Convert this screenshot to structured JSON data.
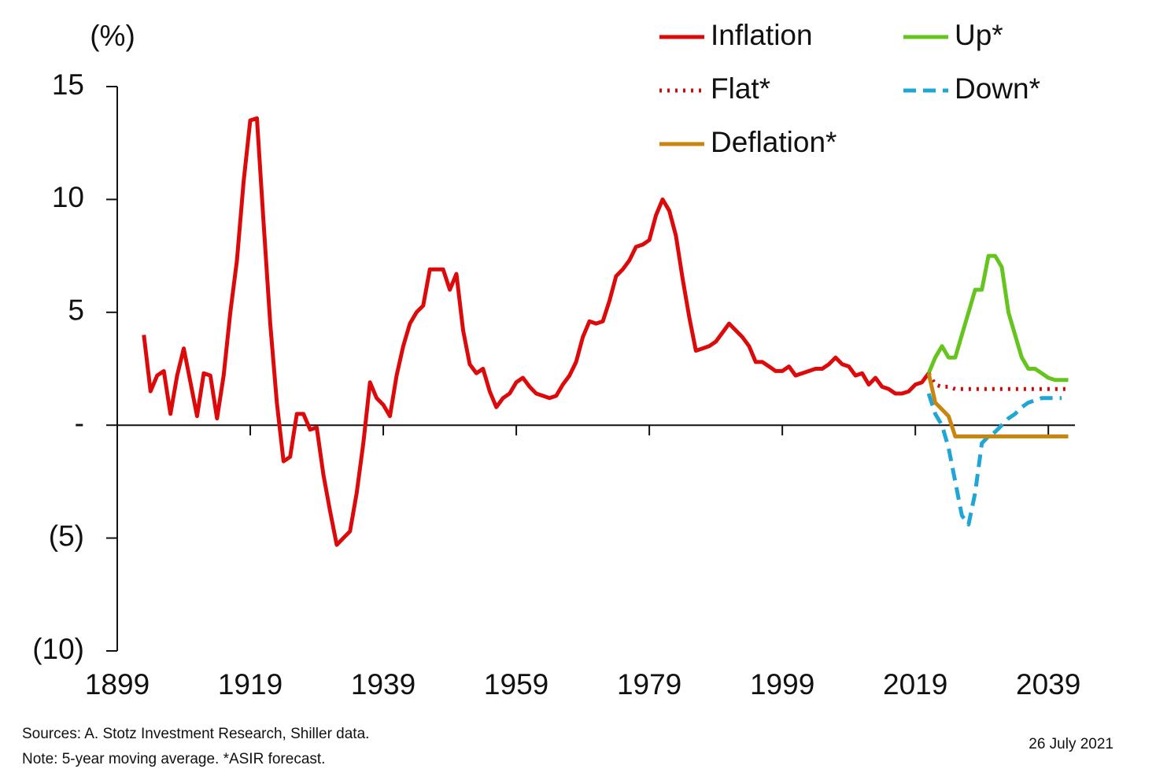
{
  "chart_data": {
    "type": "line",
    "y_label": "(%)",
    "xlim": [
      1899,
      2043
    ],
    "xticks": [
      1899,
      1919,
      1939,
      1959,
      1979,
      1999,
      2019,
      2039
    ],
    "ylim": [
      -10,
      15
    ],
    "yticks": [
      15,
      10,
      5,
      {
        "value": 0,
        "label": "-"
      },
      {
        "value": -5,
        "label": "(5)"
      },
      {
        "value": -10,
        "label": "(10)"
      }
    ],
    "series": [
      {
        "name": "Inflation",
        "color": "#dc0a0a",
        "dash": "solid",
        "x": [
          1903,
          1904,
          1905,
          1906,
          1907,
          1908,
          1909,
          1910,
          1911,
          1912,
          1913,
          1914,
          1915,
          1916,
          1917,
          1918,
          1919,
          1920,
          1921,
          1922,
          1923,
          1924,
          1925,
          1926,
          1927,
          1928,
          1929,
          1930,
          1931,
          1932,
          1933,
          1934,
          1935,
          1936,
          1937,
          1938,
          1939,
          1940,
          1941,
          1942,
          1943,
          1944,
          1945,
          1946,
          1947,
          1948,
          1949,
          1950,
          1951,
          1952,
          1953,
          1954,
          1955,
          1956,
          1957,
          1958,
          1959,
          1960,
          1961,
          1962,
          1963,
          1964,
          1965,
          1966,
          1967,
          1968,
          1969,
          1970,
          1971,
          1972,
          1973,
          1974,
          1975,
          1976,
          1977,
          1978,
          1979,
          1980,
          1981,
          1982,
          1983,
          1984,
          1985,
          1986,
          1987,
          1988,
          1989,
          1990,
          1991,
          1992,
          1993,
          1994,
          1995,
          1996,
          1997,
          1998,
          1999,
          2000,
          2001,
          2002,
          2003,
          2004,
          2005,
          2006,
          2007,
          2008,
          2009,
          2010,
          2011,
          2012,
          2013,
          2014,
          2015,
          2016,
          2017,
          2018,
          2019,
          2020,
          2021
        ],
        "values": [
          4.0,
          1.5,
          2.2,
          2.4,
          0.5,
          2.2,
          3.4,
          1.9,
          0.4,
          2.3,
          2.2,
          0.3,
          2.2,
          5.0,
          7.3,
          10.8,
          13.5,
          13.6,
          9.0,
          4.5,
          1.0,
          -1.6,
          -1.4,
          0.5,
          0.5,
          -0.2,
          -0.1,
          -2.2,
          -3.8,
          -5.3,
          -5.0,
          -4.7,
          -3.0,
          -0.8,
          1.9,
          1.2,
          0.9,
          0.4,
          2.2,
          3.5,
          4.5,
          5.0,
          5.3,
          6.9,
          6.9,
          6.9,
          6.0,
          6.7,
          4.2,
          2.7,
          2.3,
          2.5,
          1.5,
          0.8,
          1.2,
          1.4,
          1.9,
          2.1,
          1.7,
          1.4,
          1.3,
          1.2,
          1.3,
          1.8,
          2.2,
          2.8,
          3.9,
          4.6,
          4.5,
          4.6,
          5.5,
          6.6,
          6.9,
          7.3,
          7.9,
          8.0,
          8.2,
          9.3,
          10.0,
          9.5,
          8.4,
          6.5,
          4.8,
          3.3,
          3.4,
          3.5,
          3.7,
          4.1,
          4.5,
          4.2,
          3.9,
          3.5,
          2.8,
          2.8,
          2.6,
          2.4,
          2.4,
          2.6,
          2.2,
          2.3,
          2.4,
          2.5,
          2.5,
          2.7,
          3.0,
          2.7,
          2.6,
          2.2,
          2.3,
          1.8,
          2.1,
          1.7,
          1.6,
          1.4,
          1.4,
          1.5,
          1.8,
          1.9,
          2.3
        ]
      },
      {
        "name": "Up*",
        "color": "#66c41e",
        "dash": "solid",
        "x": [
          2021,
          2022,
          2023,
          2024,
          2025,
          2026,
          2027,
          2028,
          2029,
          2030,
          2031,
          2032,
          2033,
          2034,
          2035,
          2036,
          2037,
          2038,
          2039,
          2040,
          2041,
          2042
        ],
        "values": [
          2.3,
          3.0,
          3.5,
          3.0,
          3.0,
          4.0,
          5.0,
          6.0,
          6.0,
          7.5,
          7.5,
          7.0,
          5.0,
          4.0,
          3.0,
          2.5,
          2.5,
          2.3,
          2.1,
          2.0,
          2.0,
          2.0
        ]
      },
      {
        "name": "Flat*",
        "color": "#cc0a0a",
        "dash": "dotted",
        "x": [
          2021,
          2022,
          2023,
          2024,
          2025,
          2026,
          2027,
          2028,
          2029,
          2030,
          2031,
          2032,
          2033,
          2034,
          2035,
          2036,
          2037,
          2038,
          2039,
          2040,
          2041,
          2042
        ],
        "values": [
          2.3,
          1.8,
          1.7,
          1.7,
          1.6,
          1.6,
          1.6,
          1.6,
          1.6,
          1.6,
          1.6,
          1.6,
          1.6,
          1.6,
          1.6,
          1.6,
          1.6,
          1.6,
          1.6,
          1.6,
          1.6,
          1.6
        ]
      },
      {
        "name": "Down*",
        "color": "#1fa6d6",
        "dash": "dashed",
        "x": [
          2021,
          2022,
          2023,
          2024,
          2025,
          2026,
          2027,
          2028,
          2029,
          2030,
          2031,
          2032,
          2033,
          2034,
          2035,
          2036,
          2037,
          2038,
          2039,
          2040,
          2041
        ],
        "values": [
          1.4,
          0.5,
          0.0,
          -1.0,
          -2.5,
          -4.0,
          -4.4,
          -3.0,
          -0.8,
          -0.5,
          -0.3,
          0.0,
          0.3,
          0.5,
          0.8,
          1.0,
          1.1,
          1.2,
          1.2,
          1.2,
          1.2
        ]
      },
      {
        "name": "Deflation*",
        "color": "#c8860e",
        "dash": "solid",
        "x": [
          2021,
          2022,
          2023,
          2024,
          2025,
          2026,
          2027,
          2028,
          2029,
          2030,
          2031,
          2032,
          2033,
          2034,
          2035,
          2036,
          2037,
          2038,
          2039,
          2040,
          2041,
          2042
        ],
        "values": [
          2.3,
          1.0,
          0.7,
          0.4,
          -0.5,
          -0.5,
          -0.5,
          -0.5,
          -0.5,
          -0.5,
          -0.5,
          -0.5,
          -0.5,
          -0.5,
          -0.5,
          -0.5,
          -0.5,
          -0.5,
          -0.5,
          -0.5,
          -0.5,
          -0.5
        ]
      }
    ],
    "source": "Sources: A. Stotz Investment Research, Shiller data.",
    "note": "Note: 5-year moving average. *ASIR forecast.",
    "date": "26 July 2021"
  }
}
